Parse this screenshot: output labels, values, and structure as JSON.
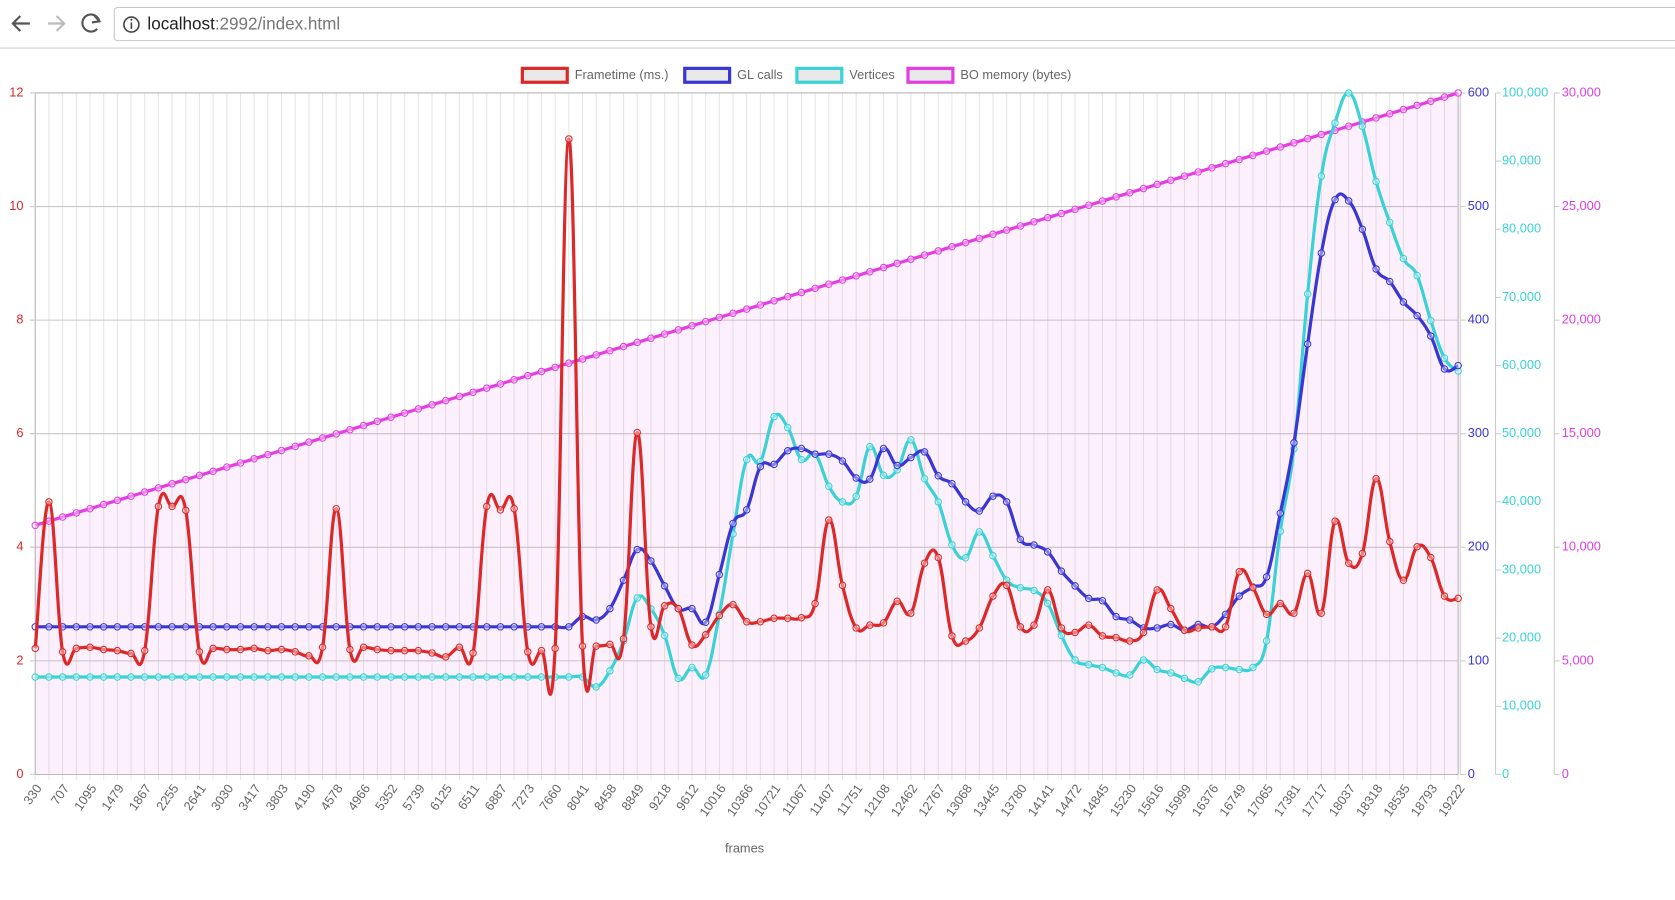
{
  "browser": {
    "url_host": "localhost",
    "url_rest": ":2992/index.html"
  },
  "chart_data": {
    "type": "line",
    "x_label": "frames",
    "categories": [
      "330",
      null,
      "707",
      null,
      "1095",
      null,
      "1479",
      null,
      "1867",
      null,
      "2255",
      null,
      "2641",
      null,
      "3030",
      null,
      "3417",
      null,
      "3803",
      null,
      "4190",
      null,
      "4578",
      null,
      "4966",
      null,
      "5352",
      null,
      "5739",
      null,
      "6125",
      null,
      "6511",
      null,
      "6887",
      null,
      "7273",
      null,
      "7660",
      null,
      "8041",
      null,
      "8458",
      null,
      "8849",
      null,
      "9218",
      null,
      "9612",
      null,
      "10016",
      null,
      "10366",
      null,
      "10721",
      null,
      "11067",
      null,
      "11407",
      null,
      "11751",
      null,
      "12108",
      null,
      "12462",
      null,
      "12767",
      null,
      "13068",
      null,
      "13445",
      null,
      "13780",
      null,
      "14141",
      null,
      "14472",
      null,
      "14845",
      null,
      "15230",
      null,
      "15616",
      null,
      "15999",
      null,
      "16376",
      null,
      "16749",
      null,
      "17065",
      null,
      "17381",
      null,
      "17717",
      null,
      "18037",
      null,
      "18318",
      null,
      "18535",
      null,
      "18793",
      null,
      "19222"
    ],
    "series": [
      {
        "name": "Frametime (ms.)",
        "color": "#dc2828",
        "axis": "y",
        "values": [
          2.22,
          4.8,
          2.16,
          2.22,
          2.24,
          2.2,
          2.18,
          2.13,
          2.18,
          4.72,
          4.72,
          4.65,
          2.16,
          2.22,
          2.2,
          2.2,
          2.22,
          2.18,
          2.2,
          2.16,
          2.09,
          2.24,
          4.68,
          2.2,
          2.24,
          2.2,
          2.18,
          2.18,
          2.18,
          2.14,
          2.07,
          2.24,
          2.14,
          4.72,
          4.66,
          4.68,
          2.16,
          2.18,
          2.22,
          11.19,
          2.26,
          2.26,
          2.29,
          2.39,
          6.02,
          2.6,
          2.97,
          2.92,
          2.28,
          2.46,
          2.8,
          2.99,
          2.69,
          2.69,
          2.75,
          2.75,
          2.76,
          3.01,
          4.48,
          3.33,
          2.58,
          2.63,
          2.67,
          3.05,
          2.84,
          3.72,
          3.82,
          2.44,
          2.35,
          2.58,
          3.14,
          3.33,
          2.6,
          2.63,
          3.25,
          2.58,
          2.5,
          2.63,
          2.44,
          2.41,
          2.35,
          2.5,
          3.25,
          2.92,
          2.54,
          2.58,
          2.6,
          2.6,
          3.57,
          3.29,
          2.82,
          3.01,
          2.84,
          3.54,
          2.84,
          4.46,
          3.72,
          3.89,
          5.21,
          4.1,
          3.42,
          4.01,
          3.82,
          3.14,
          3.1
        ]
      },
      {
        "name": "GL calls",
        "color": "#3a36d4",
        "axis": "y2",
        "values": [
          130,
          130,
          130,
          130,
          130,
          130,
          130,
          130,
          130,
          130,
          130,
          130,
          130,
          130,
          130,
          130,
          130,
          130,
          130,
          130,
          130,
          130,
          130,
          130,
          130,
          130,
          130,
          130,
          130,
          130,
          130,
          130,
          130,
          130,
          130,
          130,
          130,
          130,
          130,
          130,
          139,
          136,
          146,
          171,
          198,
          188,
          166,
          146,
          146,
          134,
          176,
          221,
          233,
          271,
          273,
          285,
          287,
          282,
          282,
          276,
          261,
          260,
          287,
          272,
          279,
          284,
          263,
          256,
          240,
          232,
          245,
          240,
          207,
          202,
          196,
          179,
          166,
          155,
          153,
          139,
          136,
          129,
          129,
          132,
          127,
          132,
          130,
          141,
          157,
          165,
          174,
          230,
          292,
          379,
          459,
          506,
          505,
          480,
          445,
          434,
          416,
          404,
          386,
          357,
          360
        ]
      },
      {
        "name": "Vertices",
        "color": "#3ad2d6",
        "axis": "y3",
        "values": [
          14300,
          14300,
          14300,
          14300,
          14300,
          14300,
          14300,
          14300,
          14300,
          14300,
          14300,
          14300,
          14300,
          14300,
          14300,
          14300,
          14300,
          14300,
          14300,
          14300,
          14300,
          14300,
          14300,
          14300,
          14300,
          14300,
          14300,
          14300,
          14300,
          14300,
          14300,
          14300,
          14300,
          14300,
          14300,
          14300,
          14300,
          14300,
          14300,
          14300,
          14300,
          12850,
          15200,
          19600,
          25900,
          24300,
          20400,
          14100,
          15700,
          14600,
          23500,
          35300,
          46200,
          45900,
          52500,
          50900,
          46200,
          47000,
          42300,
          40000,
          40800,
          48100,
          43900,
          44700,
          49100,
          43400,
          40000,
          33700,
          31800,
          35600,
          32100,
          28500,
          27400,
          27000,
          25100,
          20400,
          16800,
          16100,
          15700,
          14900,
          14600,
          16800,
          15400,
          14900,
          14100,
          13600,
          15500,
          15700,
          15400,
          15700,
          19600,
          35700,
          47800,
          70500,
          87800,
          95600,
          100000,
          95100,
          87000,
          81000,
          75700,
          73200,
          66600,
          61100,
          59200
        ]
      },
      {
        "name": "BO memory (bytes)",
        "color": "#e23ee2",
        "axis": "y4",
        "fill": "rgba(235,70,235,0.08)",
        "values": [
          10968,
          11151,
          11334,
          11517,
          11700,
          11883,
          12066,
          12249,
          12432,
          12615,
          12798,
          12981,
          13164,
          13347,
          13530,
          13713,
          13896,
          14079,
          14262,
          14445,
          14628,
          14811,
          14994,
          15177,
          15360,
          15543,
          15726,
          15909,
          16092,
          16275,
          16458,
          16641,
          16824,
          17007,
          17190,
          17373,
          17556,
          17739,
          17922,
          18105,
          18288,
          18471,
          18654,
          18837,
          19020,
          19203,
          19386,
          19569,
          19752,
          19935,
          20118,
          20301,
          20484,
          20667,
          20850,
          21033,
          21216,
          21399,
          21582,
          21765,
          21948,
          22131,
          22314,
          22497,
          22680,
          22863,
          23046,
          23229,
          23412,
          23595,
          23778,
          23961,
          24144,
          24327,
          24510,
          24693,
          24876,
          25059,
          25242,
          25425,
          25608,
          25791,
          25974,
          26157,
          26340,
          26523,
          26706,
          26889,
          27072,
          27255,
          27438,
          27621,
          27804,
          27987,
          28170,
          28353,
          28536,
          28719,
          28902,
          29085,
          29268,
          29451,
          29634,
          29817,
          30000
        ]
      }
    ],
    "ylim": [
      0,
      12
    ],
    "yticks": [
      0,
      2,
      4,
      6,
      8,
      10,
      12
    ],
    "y2lim": [
      0,
      600
    ],
    "y2ticks": [
      0,
      100,
      200,
      300,
      400,
      500,
      600
    ],
    "y3lim": [
      0,
      100000
    ],
    "y3ticks": [
      0,
      {
        "value": 10000,
        "label": "10,000"
      },
      {
        "value": 20000,
        "label": "20,000"
      },
      {
        "value": 30000,
        "label": "30,000"
      },
      {
        "value": 40000,
        "label": "40,000"
      },
      {
        "value": 50000,
        "label": "50,000"
      },
      {
        "value": 60000,
        "label": "60,000"
      },
      {
        "value": 70000,
        "label": "70,000"
      },
      {
        "value": 80000,
        "label": "80,000"
      },
      {
        "value": 90000,
        "label": "90,000"
      },
      {
        "value": 100000,
        "label": "100,000"
      }
    ],
    "y4lim": [
      0,
      30000
    ],
    "y4ticks": [
      0,
      {
        "value": 5000,
        "label": "5,000"
      },
      {
        "value": 10000,
        "label": "10,000"
      },
      {
        "value": 15000,
        "label": "15,000"
      },
      {
        "value": 20000,
        "label": "20,000"
      },
      {
        "value": 25000,
        "label": "25,000"
      },
      {
        "value": 30000,
        "label": "30,000"
      }
    ],
    "grid": true,
    "legend": "top"
  }
}
